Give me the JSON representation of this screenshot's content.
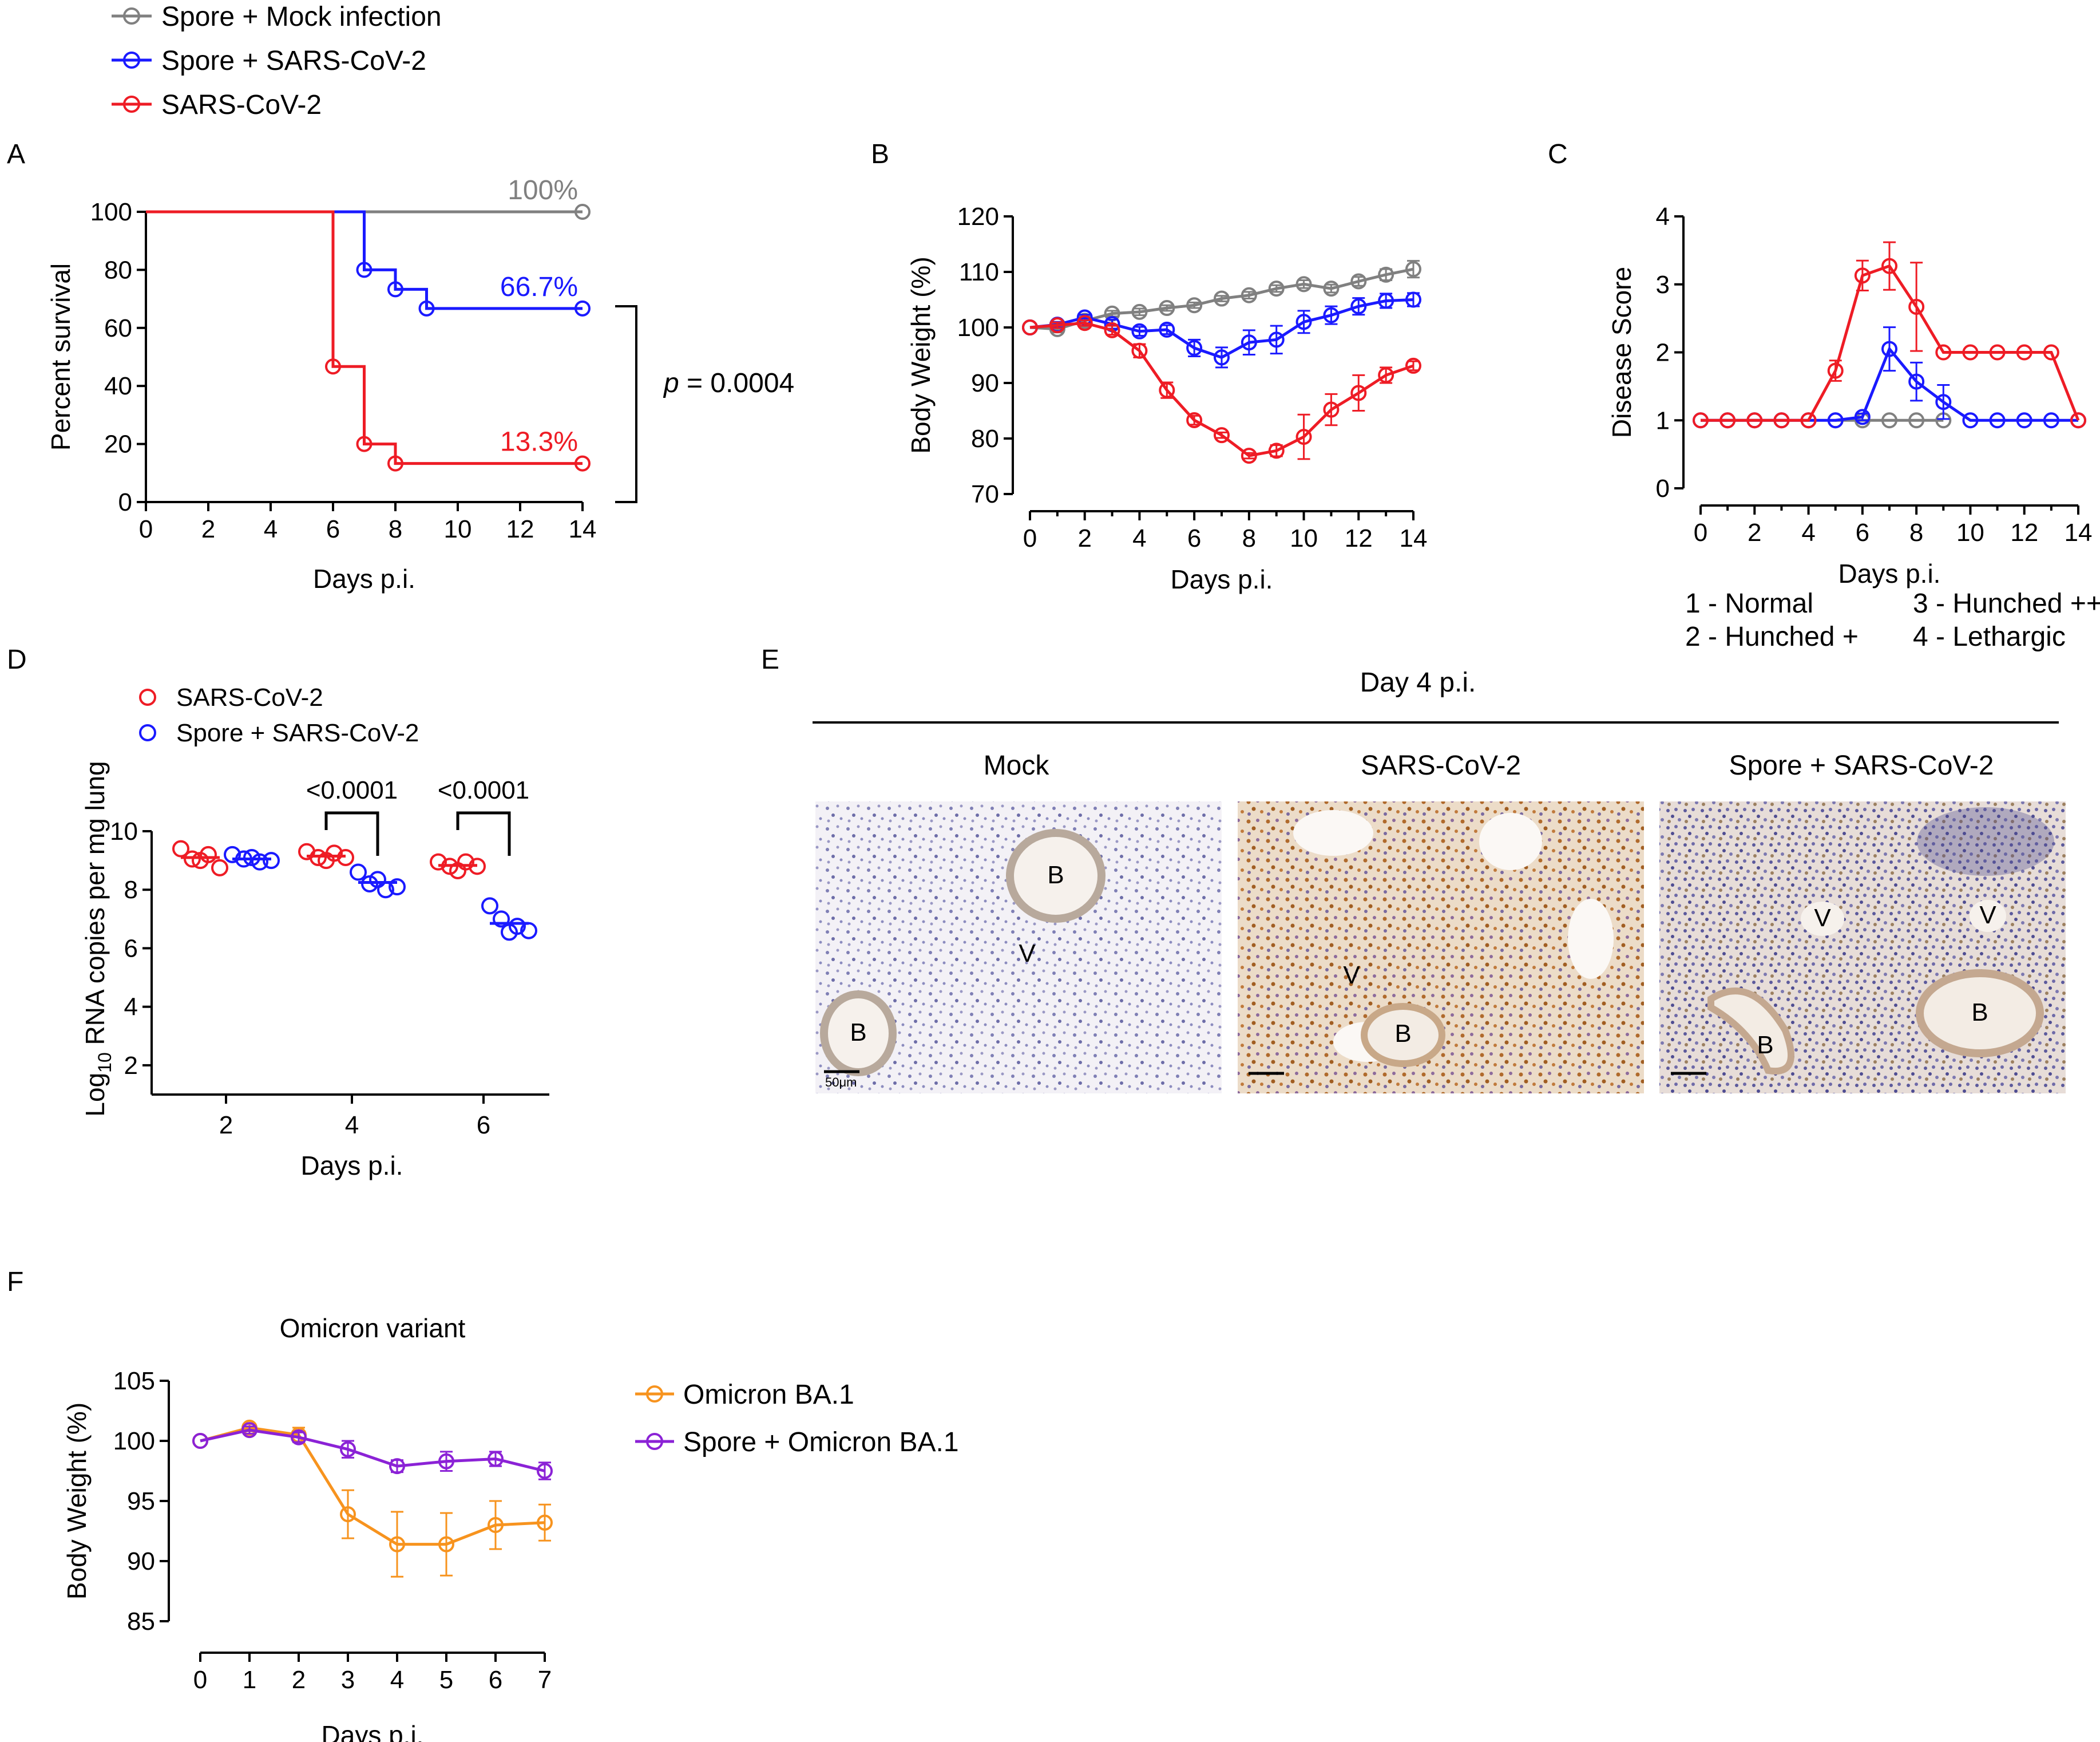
{
  "colors": {
    "mock": "#808080",
    "spore_sars": "#1a1aff",
    "sars": "#ee1c25",
    "omicron": "#f7931e",
    "spore_omicron": "#8b22d6"
  },
  "legend_top": [
    {
      "label": "Spore + Mock infection",
      "color": "#808080"
    },
    {
      "label": "Spore + SARS-CoV-2",
      "color": "#1a1aff"
    },
    {
      "label": "SARS-CoV-2",
      "color": "#ee1c25"
    }
  ],
  "panels": {
    "A": {
      "letter": "A",
      "pvalue_prefix": "p",
      "pvalue_rest": " = 0.0004"
    },
    "B": {
      "letter": "B"
    },
    "C": {
      "letter": "C",
      "score_legend": [
        "1 - Normal",
        "2 - Hunched +",
        "3 - Hunched ++",
        "4 - Lethargic"
      ]
    },
    "D": {
      "letter": "D",
      "legend": [
        "SARS-CoV-2",
        "Spore + SARS-CoV-2"
      ],
      "ylabel_prefix": "Log",
      "ylabel_sub": "10",
      "ylabel_rest": " RNA copies per mg lung"
    },
    "E": {
      "letter": "E",
      "title": "Day 4 p.i.",
      "columns": [
        "Mock",
        "SARS-CoV-2",
        "Spore + SARS-CoV-2"
      ],
      "scalebar_label": "50μm",
      "tissue_labels": [
        [
          "B",
          "V",
          "B"
        ],
        [
          "V",
          "B"
        ],
        [
          "V",
          "V",
          "B",
          "B"
        ]
      ]
    },
    "F": {
      "letter": "F"
    }
  },
  "chart_data": [
    {
      "id": "A",
      "type": "line",
      "title": "",
      "xlabel": "Days p.i.",
      "ylabel": "Percent survival",
      "xlim": [
        0,
        14
      ],
      "ylim": [
        0,
        100
      ],
      "xticks": [
        0,
        2,
        4,
        6,
        8,
        10,
        12,
        14
      ],
      "yticks": [
        0,
        20,
        40,
        60,
        80,
        100
      ],
      "step": true,
      "series": [
        {
          "name": "Spore + Mock infection",
          "color": "#808080",
          "x": [
            0,
            14
          ],
          "y": [
            100,
            100
          ],
          "markers_x": [
            14
          ],
          "end_label": "100%"
        },
        {
          "name": "Spore + SARS-CoV-2",
          "color": "#1a1aff",
          "x": [
            0,
            7,
            8,
            9,
            14
          ],
          "y": [
            100,
            80,
            73.3,
            66.7,
            66.7
          ],
          "markers_x": [
            7,
            8,
            9,
            14
          ],
          "end_label": "66.7%"
        },
        {
          "name": "SARS-CoV-2",
          "color": "#ee1c25",
          "x": [
            0,
            6,
            7,
            8,
            14
          ],
          "y": [
            100,
            46.7,
            20,
            13.3,
            13.3
          ],
          "markers_x": [
            6,
            7,
            8,
            14
          ],
          "end_label": "13.3%"
        }
      ]
    },
    {
      "id": "B",
      "type": "line",
      "xlabel": "Days p.i.",
      "ylabel": "Body Weight (%)",
      "xlim": [
        0,
        14
      ],
      "ylim": [
        70,
        120
      ],
      "xticks": [
        0,
        2,
        4,
        6,
        8,
        10,
        12,
        14
      ],
      "yticks": [
        70,
        80,
        90,
        100,
        110,
        120
      ],
      "x": [
        0,
        1,
        2,
        3,
        4,
        5,
        6,
        7,
        8,
        9,
        10,
        11,
        12,
        13,
        14
      ],
      "series": [
        {
          "name": "Spore + Mock infection",
          "color": "#808080",
          "y": [
            100,
            99.7,
            101.2,
            102.5,
            102.8,
            103.5,
            104,
            105.2,
            105.8,
            107,
            107.8,
            107,
            108.3,
            109.5,
            110.5
          ],
          "err": [
            0.3,
            0.6,
            0.5,
            0.5,
            0.6,
            0.5,
            0.5,
            0.5,
            0.6,
            0.6,
            0.7,
            0.7,
            0.8,
            1.0,
            1.5
          ]
        },
        {
          "name": "Spore + SARS-CoV-2",
          "color": "#1a1aff",
          "y": [
            100,
            100.5,
            101.8,
            100.6,
            99.3,
            99.6,
            96.3,
            94.6,
            97.3,
            97.8,
            101,
            102.2,
            103.8,
            104.8,
            105
          ],
          "err": [
            0.3,
            0.5,
            0.5,
            0.8,
            0.8,
            0.8,
            1.5,
            1.8,
            2.2,
            2.5,
            2.0,
            1.6,
            1.5,
            1.3,
            1.2
          ]
        },
        {
          "name": "SARS-CoV-2",
          "color": "#ee1c25",
          "y": [
            100,
            100.4,
            100.8,
            99.5,
            95.8,
            88.7,
            83.3,
            80.6,
            76.9,
            77.8,
            80.3,
            85.2,
            88.2,
            91.4,
            93.1
          ],
          "err": [
            0.3,
            0.5,
            0.5,
            0.8,
            1.2,
            1.4,
            0.8,
            0.5,
            0.5,
            1.0,
            4.0,
            2.8,
            3.2,
            1.4,
            0.8
          ]
        }
      ]
    },
    {
      "id": "C",
      "type": "line",
      "xlabel": "Days p.i.",
      "ylabel": "Disease Score",
      "xlim": [
        0,
        14
      ],
      "ylim": [
        0,
        4
      ],
      "xticks": [
        0,
        2,
        4,
        6,
        8,
        10,
        12,
        14
      ],
      "yticks": [
        0,
        1,
        2,
        3,
        4
      ],
      "series": [
        {
          "name": "Spore + Mock infection",
          "color": "#808080",
          "x": [
            5,
            6,
            7,
            8,
            9
          ],
          "y": [
            1,
            1,
            1,
            1,
            1
          ],
          "err": [
            0,
            0,
            0,
            0,
            0
          ]
        },
        {
          "name": "Spore + SARS-CoV-2",
          "color": "#1a1aff",
          "x": [
            0,
            1,
            2,
            3,
            4,
            5,
            6,
            7,
            8,
            9,
            10,
            11,
            12,
            13,
            14
          ],
          "y": [
            1,
            1,
            1,
            1,
            1,
            1,
            1.05,
            2.05,
            1.57,
            1.27,
            1,
            1,
            1,
            1,
            1
          ],
          "err": [
            0,
            0,
            0,
            0,
            0,
            0,
            0.05,
            0.32,
            0.28,
            0.25,
            0,
            0,
            0,
            0,
            0
          ]
        },
        {
          "name": "SARS-CoV-2",
          "color": "#ee1c25",
          "x": [
            0,
            1,
            2,
            3,
            4,
            5,
            6,
            7,
            8,
            9,
            10,
            11,
            12,
            13,
            14
          ],
          "y": [
            1,
            1,
            1,
            1,
            1,
            1.73,
            3.13,
            3.27,
            2.67,
            2,
            2,
            2,
            2,
            2,
            1
          ],
          "err": [
            0,
            0,
            0,
            0,
            0,
            0.15,
            0.22,
            0.35,
            0.65,
            0,
            0,
            0,
            0,
            0,
            0
          ]
        }
      ]
    },
    {
      "id": "D",
      "type": "scatter",
      "xlabel": "Days p.i.",
      "ylim": [
        1,
        10
      ],
      "yticks": [
        2,
        4,
        6,
        8,
        10
      ],
      "categories": [
        "2",
        "4",
        "6"
      ],
      "series": [
        {
          "name": "SARS-CoV-2",
          "color": "#ee1c25",
          "points": [
            [
              9.4,
              9.05,
              9.0,
              9.2,
              8.75
            ],
            [
              9.3,
              9.1,
              9.0,
              9.25,
              9.1
            ],
            [
              8.95,
              8.8,
              8.65,
              8.95,
              8.8
            ]
          ],
          "mean": [
            9.1,
            9.15,
            8.83
          ]
        },
        {
          "name": "Spore + SARS-CoV-2",
          "color": "#1a1aff",
          "points": [
            [
              9.2,
              9.05,
              9.1,
              8.95,
              9.0
            ],
            [
              8.6,
              8.2,
              8.35,
              8.0,
              8.1
            ],
            [
              7.45,
              7.0,
              6.55,
              6.75,
              6.6
            ]
          ],
          "mean": [
            9.05,
            8.25,
            6.85
          ]
        }
      ],
      "comparisons": [
        {
          "category": "4",
          "label": "<0.0001"
        },
        {
          "category": "6",
          "label": "<0.0001"
        }
      ]
    },
    {
      "id": "F",
      "type": "line",
      "title": "Omicron variant",
      "xlabel": "Days p.i.",
      "ylabel": "Body Weight (%)",
      "xlim": [
        0,
        7
      ],
      "ylim": [
        85,
        105
      ],
      "xticks": [
        0,
        1,
        2,
        3,
        4,
        5,
        6,
        7
      ],
      "yticks": [
        85,
        90,
        95,
        100,
        105
      ],
      "x": [
        0,
        1,
        2,
        3,
        4,
        5,
        6,
        7
      ],
      "series": [
        {
          "name": "Omicron BA.1",
          "color": "#f7931e",
          "y": [
            100,
            101.1,
            100.5,
            93.9,
            91.4,
            91.4,
            93.0,
            93.2
          ],
          "err": [
            0,
            0.3,
            0.6,
            2.0,
            2.7,
            2.6,
            2.0,
            1.5
          ]
        },
        {
          "name": "Spore + Omicron BA.1",
          "color": "#8b22d6",
          "y": [
            100,
            100.9,
            100.3,
            99.3,
            97.9,
            98.3,
            98.5,
            97.5
          ],
          "err": [
            0,
            0.3,
            0.4,
            0.7,
            0.5,
            0.8,
            0.6,
            0.7
          ]
        }
      ]
    }
  ]
}
